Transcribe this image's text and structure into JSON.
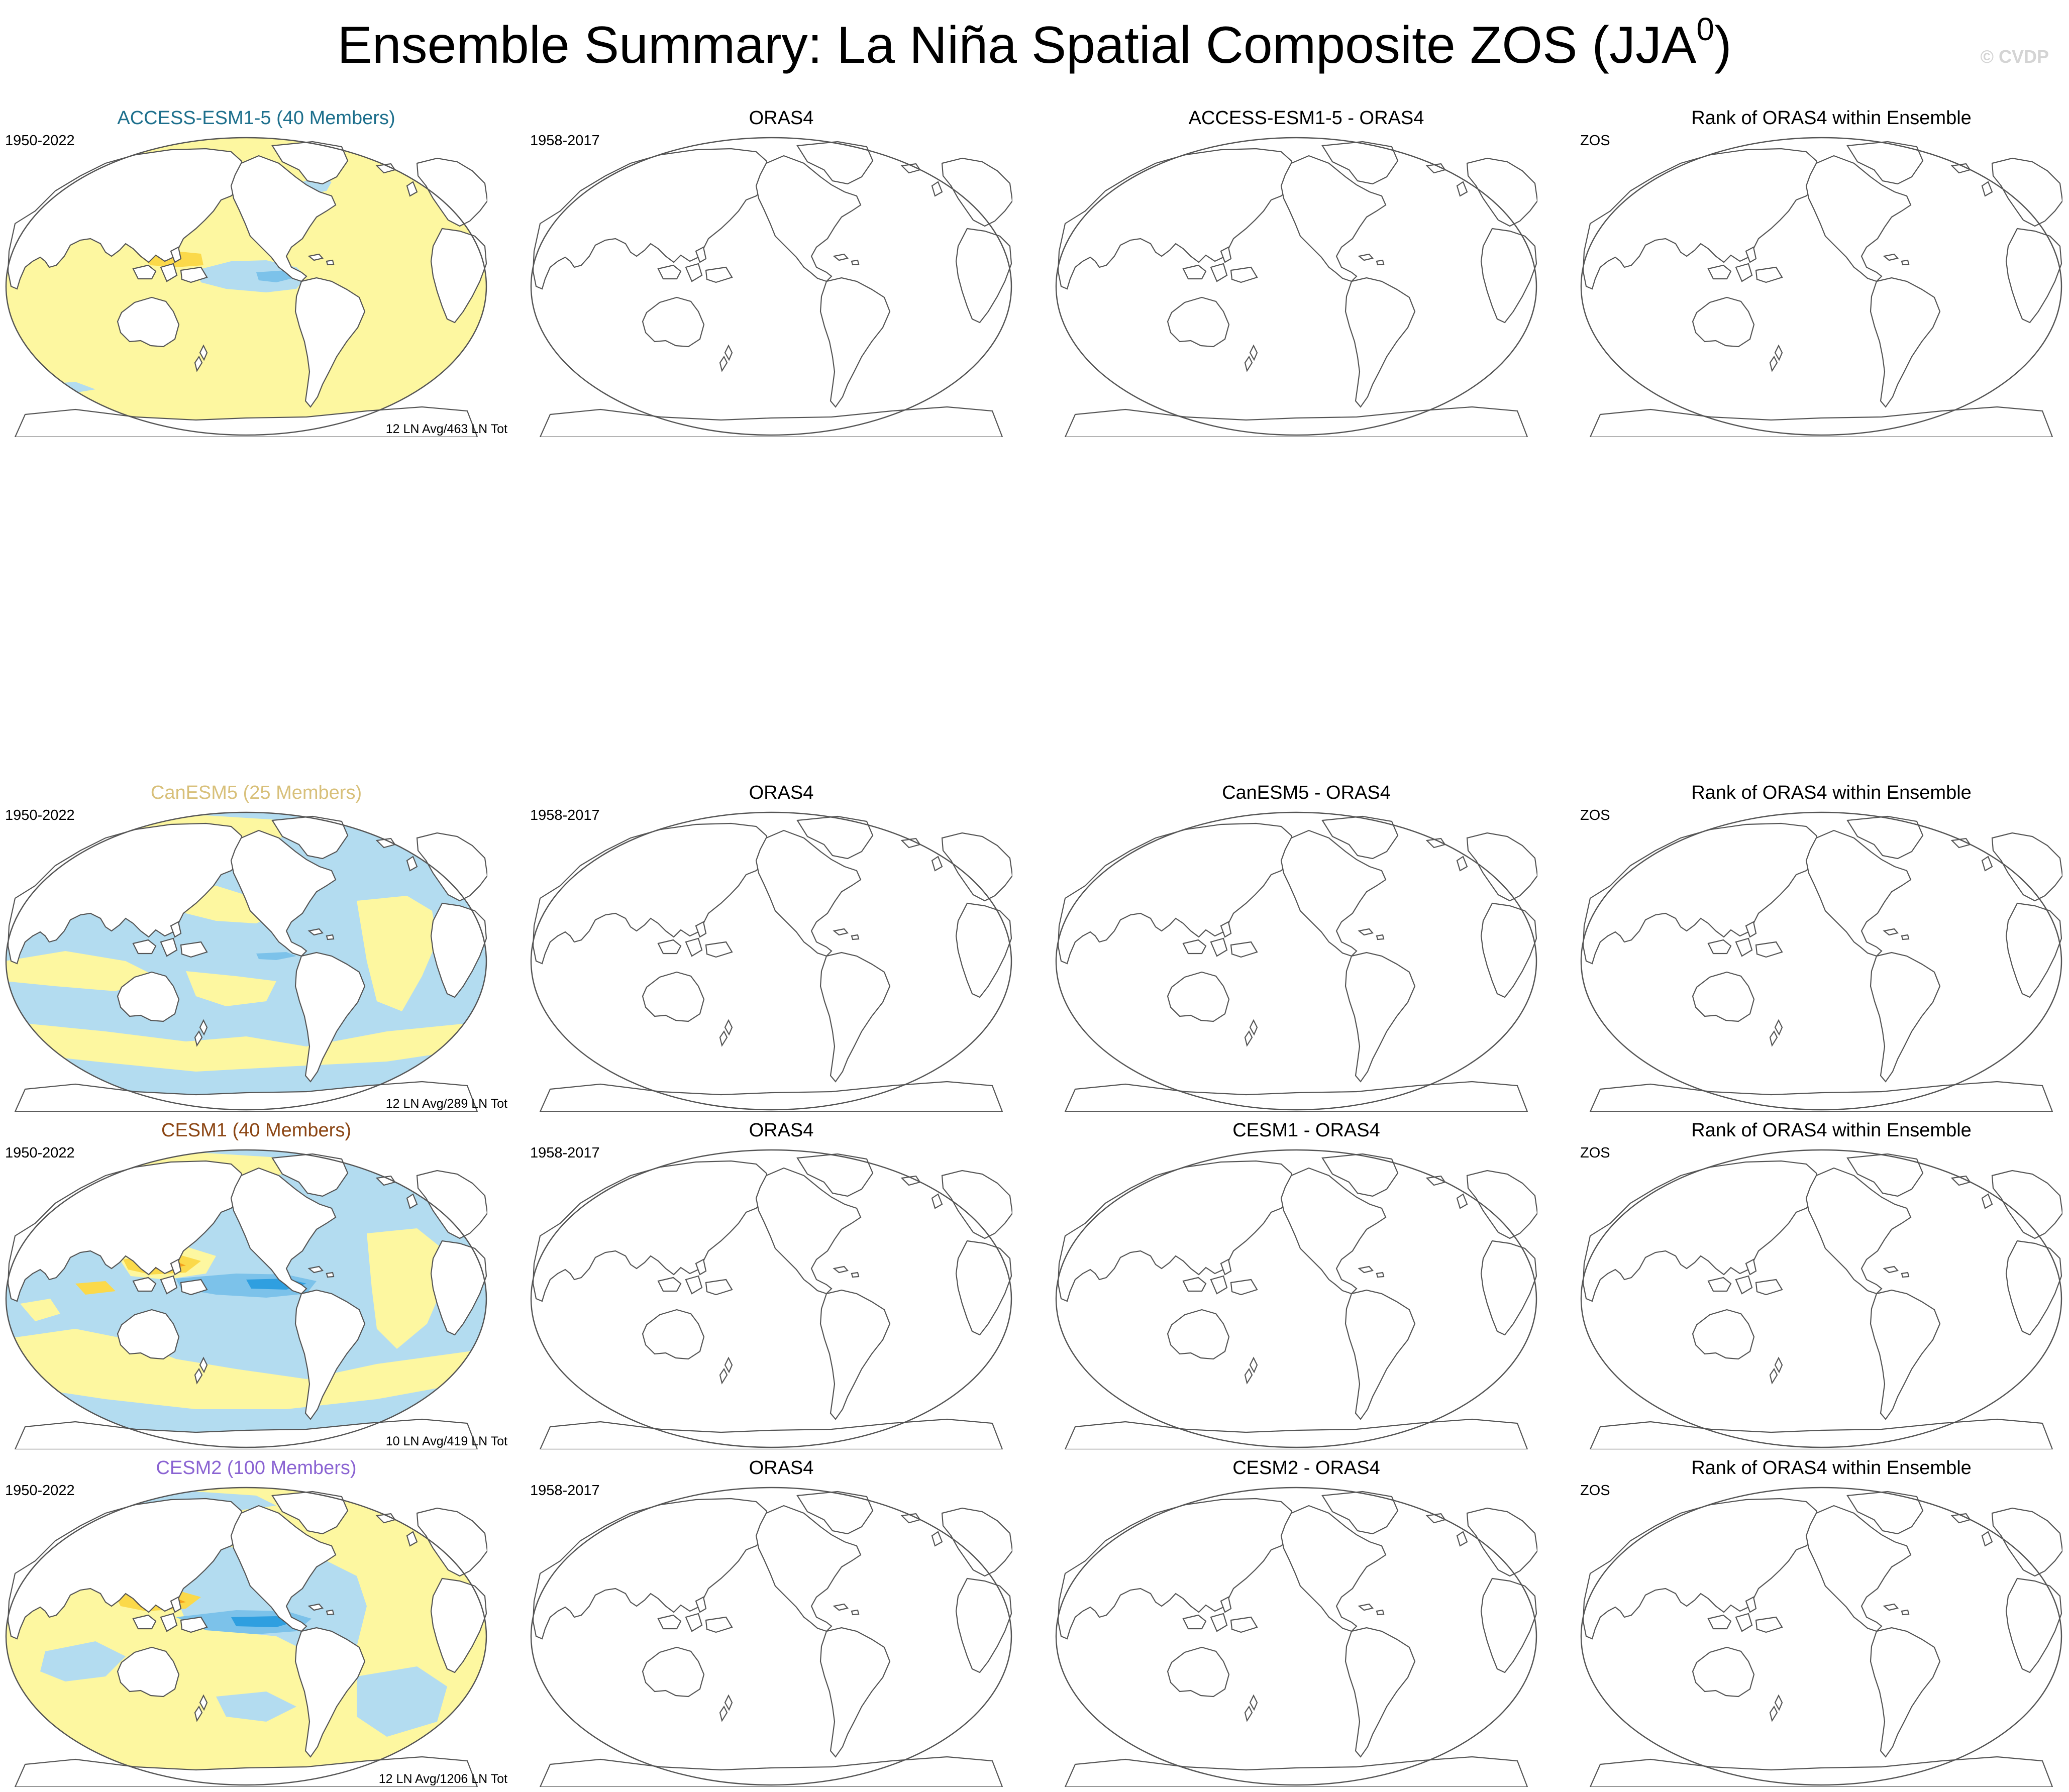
{
  "title": {
    "main": "Ensemble Summary: La Niña Spatial Composite ZOS (JJA",
    "sup": "0",
    "close": ")"
  },
  "watermark": "© CVDP",
  "colors": {
    "positive_weak": "#fdf7a0",
    "positive_mid": "#fbd94a",
    "positive_strong": "#f6a21c",
    "negative_weak": "#b3dcf0",
    "negative_mid": "#7cc2ea",
    "negative_strong": "#2f9fe0"
  },
  "rows": [
    {
      "model": {
        "title": "ACCESS-ESM1-5 (40 Members)",
        "title_color": "#1d6f8c",
        "period": "1950-2022",
        "footer": "12 LN Avg/463 LN Tot"
      },
      "obs": {
        "title": "ORAS4",
        "period": "1958-2017"
      },
      "diff": {
        "title": "ACCESS-ESM1-5 - ORAS4"
      },
      "rank": {
        "title": "Rank of ORAS4 within Ensemble",
        "label": "ZOS"
      }
    },
    {
      "model": {
        "title": "CanESM5 (25 Members)",
        "title_color": "#d8c07a",
        "period": "1950-2022",
        "footer": "12 LN Avg/289 LN Tot"
      },
      "obs": {
        "title": "ORAS4",
        "period": "1958-2017"
      },
      "diff": {
        "title": "CanESM5 - ORAS4"
      },
      "rank": {
        "title": "Rank of ORAS4 within Ensemble",
        "label": "ZOS"
      }
    },
    {
      "model": {
        "title": "CESM1 (40 Members)",
        "title_color": "#8b4513",
        "period": "1950-2022",
        "footer": "10 LN Avg/419 LN Tot"
      },
      "obs": {
        "title": "ORAS4",
        "period": "1958-2017"
      },
      "diff": {
        "title": "CESM1 - ORAS4"
      },
      "rank": {
        "title": "Rank of ORAS4 within Ensemble",
        "label": "ZOS"
      }
    },
    {
      "model": {
        "title": "CESM2 (100 Members)",
        "title_color": "#8a63d2",
        "period": "1950-2022",
        "footer": "12 LN Avg/1206 LN Tot"
      },
      "obs": {
        "title": "ORAS4",
        "period": "1958-2017"
      },
      "diff": {
        "title": "CESM2 - ORAS4"
      },
      "rank": {
        "title": "Rank of ORAS4 within Ensemble",
        "label": "ZOS"
      }
    }
  ]
}
